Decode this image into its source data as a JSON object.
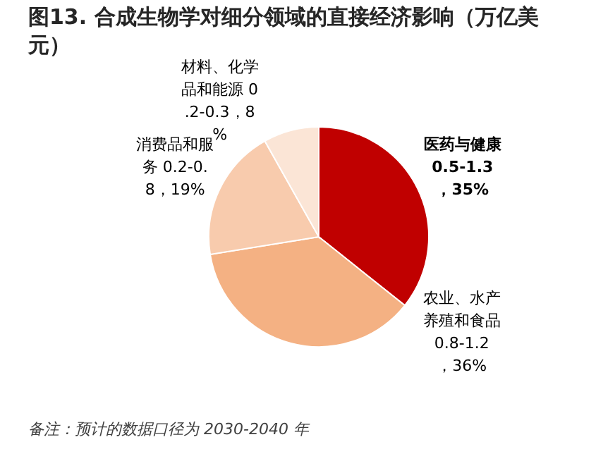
{
  "chart_data": {
    "type": "pie",
    "title": "图13. 合成生物学对细分领域的直接经济影响（万亿美元）",
    "categories": [
      "医药与健康",
      "农业、水产养殖和食品",
      "消费品和服务",
      "材料、化学品和能源"
    ],
    "values": [
      35,
      36,
      19,
      8
    ],
    "value_labels": [
      "0.5-1.3，35%",
      "0.8-1.2，36%",
      "0.2-0.8，19%",
      "0.2-0.3，8%"
    ],
    "colors": [
      "#c00000",
      "#f4b183",
      "#f8cbad",
      "#fbe5d6"
    ],
    "annotations": [
      "备注：预计的数据口径为 2030-2040 年"
    ]
  }
}
